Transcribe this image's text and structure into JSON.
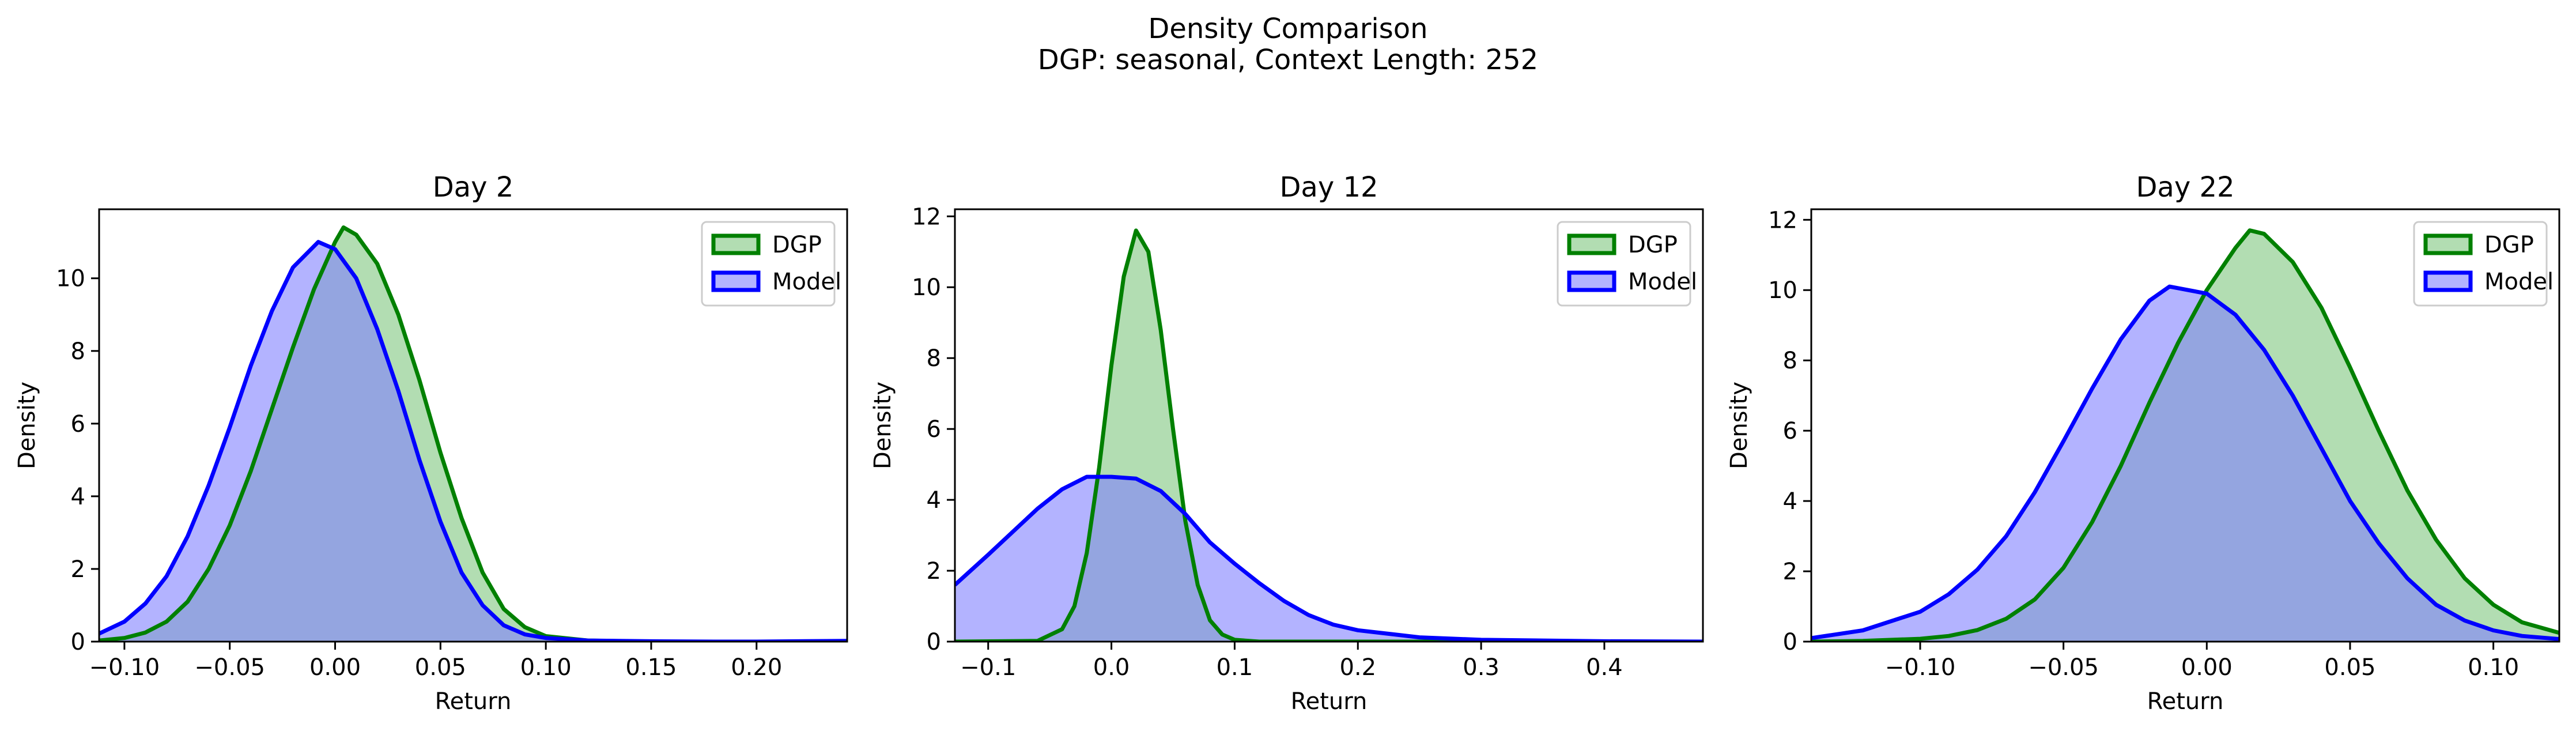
{
  "figure": {
    "title": "Density Comparison",
    "subtitle": "DGP: seasonal, Context Length: 252"
  },
  "colors": {
    "dgp_line": "#008000",
    "dgp_fill": "#7fc77f",
    "model_line": "#0000ff",
    "model_fill": "#8080ff",
    "overlap_fill": "#7f9cc8"
  },
  "chart_data": [
    {
      "type": "area",
      "title": "Day 2",
      "xlabel": "Return",
      "ylabel": "Density",
      "xlim": [
        -0.112,
        0.243
      ],
      "ylim": [
        0,
        11.9
      ],
      "xticks": [
        -0.1,
        -0.05,
        0.0,
        0.05,
        0.1,
        0.15,
        0.2
      ],
      "xtick_labels": [
        "−0.10",
        "−0.05",
        "0.00",
        "0.05",
        "0.10",
        "0.15",
        "0.20"
      ],
      "yticks": [
        0,
        2,
        4,
        6,
        8,
        10
      ],
      "ytick_labels": [
        "0",
        "2",
        "4",
        "6",
        "8",
        "10"
      ],
      "legend": {
        "position": "top-right",
        "entries": [
          "DGP",
          "Model"
        ]
      },
      "series": [
        {
          "name": "DGP",
          "x": [
            -0.112,
            -0.1,
            -0.09,
            -0.08,
            -0.07,
            -0.06,
            -0.05,
            -0.04,
            -0.03,
            -0.02,
            -0.01,
            0.0,
            0.004,
            0.01,
            0.02,
            0.03,
            0.04,
            0.05,
            0.06,
            0.07,
            0.08,
            0.09,
            0.1,
            0.12,
            0.15,
            0.2,
            0.243
          ],
          "y": [
            0.03,
            0.1,
            0.25,
            0.55,
            1.1,
            2.0,
            3.2,
            4.7,
            6.4,
            8.1,
            9.7,
            11.0,
            11.4,
            11.2,
            10.4,
            9.0,
            7.2,
            5.2,
            3.4,
            1.9,
            0.9,
            0.4,
            0.15,
            0.03,
            0.0,
            0.0,
            0.0
          ]
        },
        {
          "name": "Model",
          "x": [
            -0.112,
            -0.1,
            -0.09,
            -0.08,
            -0.07,
            -0.06,
            -0.05,
            -0.04,
            -0.03,
            -0.02,
            -0.008,
            0.0,
            0.01,
            0.02,
            0.03,
            0.04,
            0.05,
            0.06,
            0.07,
            0.08,
            0.09,
            0.1,
            0.12,
            0.15,
            0.18,
            0.2,
            0.243
          ],
          "y": [
            0.22,
            0.55,
            1.05,
            1.8,
            2.9,
            4.3,
            5.9,
            7.6,
            9.1,
            10.3,
            11.0,
            10.8,
            10.0,
            8.6,
            6.9,
            5.0,
            3.3,
            1.9,
            1.0,
            0.45,
            0.2,
            0.1,
            0.03,
            0.01,
            0.0,
            0.0,
            0.02
          ]
        }
      ]
    },
    {
      "type": "area",
      "title": "Day 12",
      "xlabel": "Return",
      "ylabel": "Density",
      "xlim": [
        -0.127,
        0.48
      ],
      "ylim": [
        0,
        12.2
      ],
      "xticks": [
        -0.1,
        0.0,
        0.1,
        0.2,
        0.3,
        0.4
      ],
      "xtick_labels": [
        "−0.1",
        "0.0",
        "0.1",
        "0.2",
        "0.3",
        "0.4"
      ],
      "yticks": [
        0,
        2,
        4,
        6,
        8,
        10,
        12
      ],
      "ytick_labels": [
        "0",
        "2",
        "4",
        "6",
        "8",
        "10",
        "12"
      ],
      "legend": {
        "position": "top-right",
        "entries": [
          "DGP",
          "Model"
        ]
      },
      "series": [
        {
          "name": "DGP",
          "x": [
            -0.127,
            -0.06,
            -0.04,
            -0.03,
            -0.02,
            -0.01,
            0.0,
            0.01,
            0.02,
            0.03,
            0.04,
            0.05,
            0.06,
            0.07,
            0.08,
            0.09,
            0.1,
            0.12,
            0.2,
            0.48
          ],
          "y": [
            0.0,
            0.02,
            0.35,
            1.0,
            2.5,
            4.9,
            7.8,
            10.3,
            11.6,
            11.0,
            8.8,
            6.0,
            3.4,
            1.6,
            0.6,
            0.2,
            0.05,
            0.0,
            0.0,
            0.0
          ]
        },
        {
          "name": "Model",
          "x": [
            -0.127,
            -0.1,
            -0.08,
            -0.06,
            -0.04,
            -0.02,
            0.0,
            0.02,
            0.04,
            0.06,
            0.08,
            0.1,
            0.12,
            0.14,
            0.16,
            0.18,
            0.2,
            0.25,
            0.3,
            0.4,
            0.48
          ],
          "y": [
            1.6,
            2.45,
            3.1,
            3.75,
            4.3,
            4.65,
            4.65,
            4.6,
            4.25,
            3.6,
            2.8,
            2.2,
            1.65,
            1.15,
            0.75,
            0.48,
            0.32,
            0.12,
            0.05,
            0.01,
            0.0
          ]
        }
      ]
    },
    {
      "type": "area",
      "title": "Day 22",
      "xlabel": "Return",
      "ylabel": "Density",
      "xlim": [
        -0.138,
        0.123
      ],
      "ylim": [
        0,
        12.3
      ],
      "xticks": [
        -0.1,
        -0.05,
        0.0,
        0.05,
        0.1
      ],
      "xtick_labels": [
        "−0.10",
        "−0.05",
        "0.00",
        "0.05",
        "0.10"
      ],
      "yticks": [
        0,
        2,
        4,
        6,
        8,
        10,
        12
      ],
      "ytick_labels": [
        "0",
        "2",
        "4",
        "6",
        "8",
        "10",
        "12"
      ],
      "legend": {
        "position": "top-right",
        "entries": [
          "DGP",
          "Model"
        ]
      },
      "series": [
        {
          "name": "DGP",
          "x": [
            -0.138,
            -0.12,
            -0.1,
            -0.09,
            -0.08,
            -0.07,
            -0.06,
            -0.05,
            -0.04,
            -0.03,
            -0.02,
            -0.01,
            0.0,
            0.01,
            0.015,
            0.02,
            0.03,
            0.04,
            0.05,
            0.06,
            0.07,
            0.08,
            0.09,
            0.1,
            0.11,
            0.123
          ],
          "y": [
            0.0,
            0.02,
            0.08,
            0.16,
            0.33,
            0.65,
            1.2,
            2.1,
            3.4,
            5.0,
            6.8,
            8.5,
            10.0,
            11.2,
            11.7,
            11.6,
            10.8,
            9.5,
            7.8,
            6.0,
            4.3,
            2.9,
            1.8,
            1.05,
            0.55,
            0.25
          ]
        },
        {
          "name": "Model",
          "x": [
            -0.138,
            -0.12,
            -0.1,
            -0.09,
            -0.08,
            -0.07,
            -0.06,
            -0.05,
            -0.04,
            -0.03,
            -0.02,
            -0.013,
            0.0,
            0.01,
            0.02,
            0.03,
            0.04,
            0.05,
            0.06,
            0.07,
            0.08,
            0.09,
            0.1,
            0.11,
            0.123
          ],
          "y": [
            0.1,
            0.32,
            0.85,
            1.35,
            2.05,
            3.0,
            4.25,
            5.7,
            7.2,
            8.6,
            9.7,
            10.1,
            9.9,
            9.3,
            8.3,
            7.0,
            5.5,
            4.0,
            2.8,
            1.8,
            1.05,
            0.6,
            0.32,
            0.16,
            0.07
          ]
        }
      ]
    }
  ]
}
